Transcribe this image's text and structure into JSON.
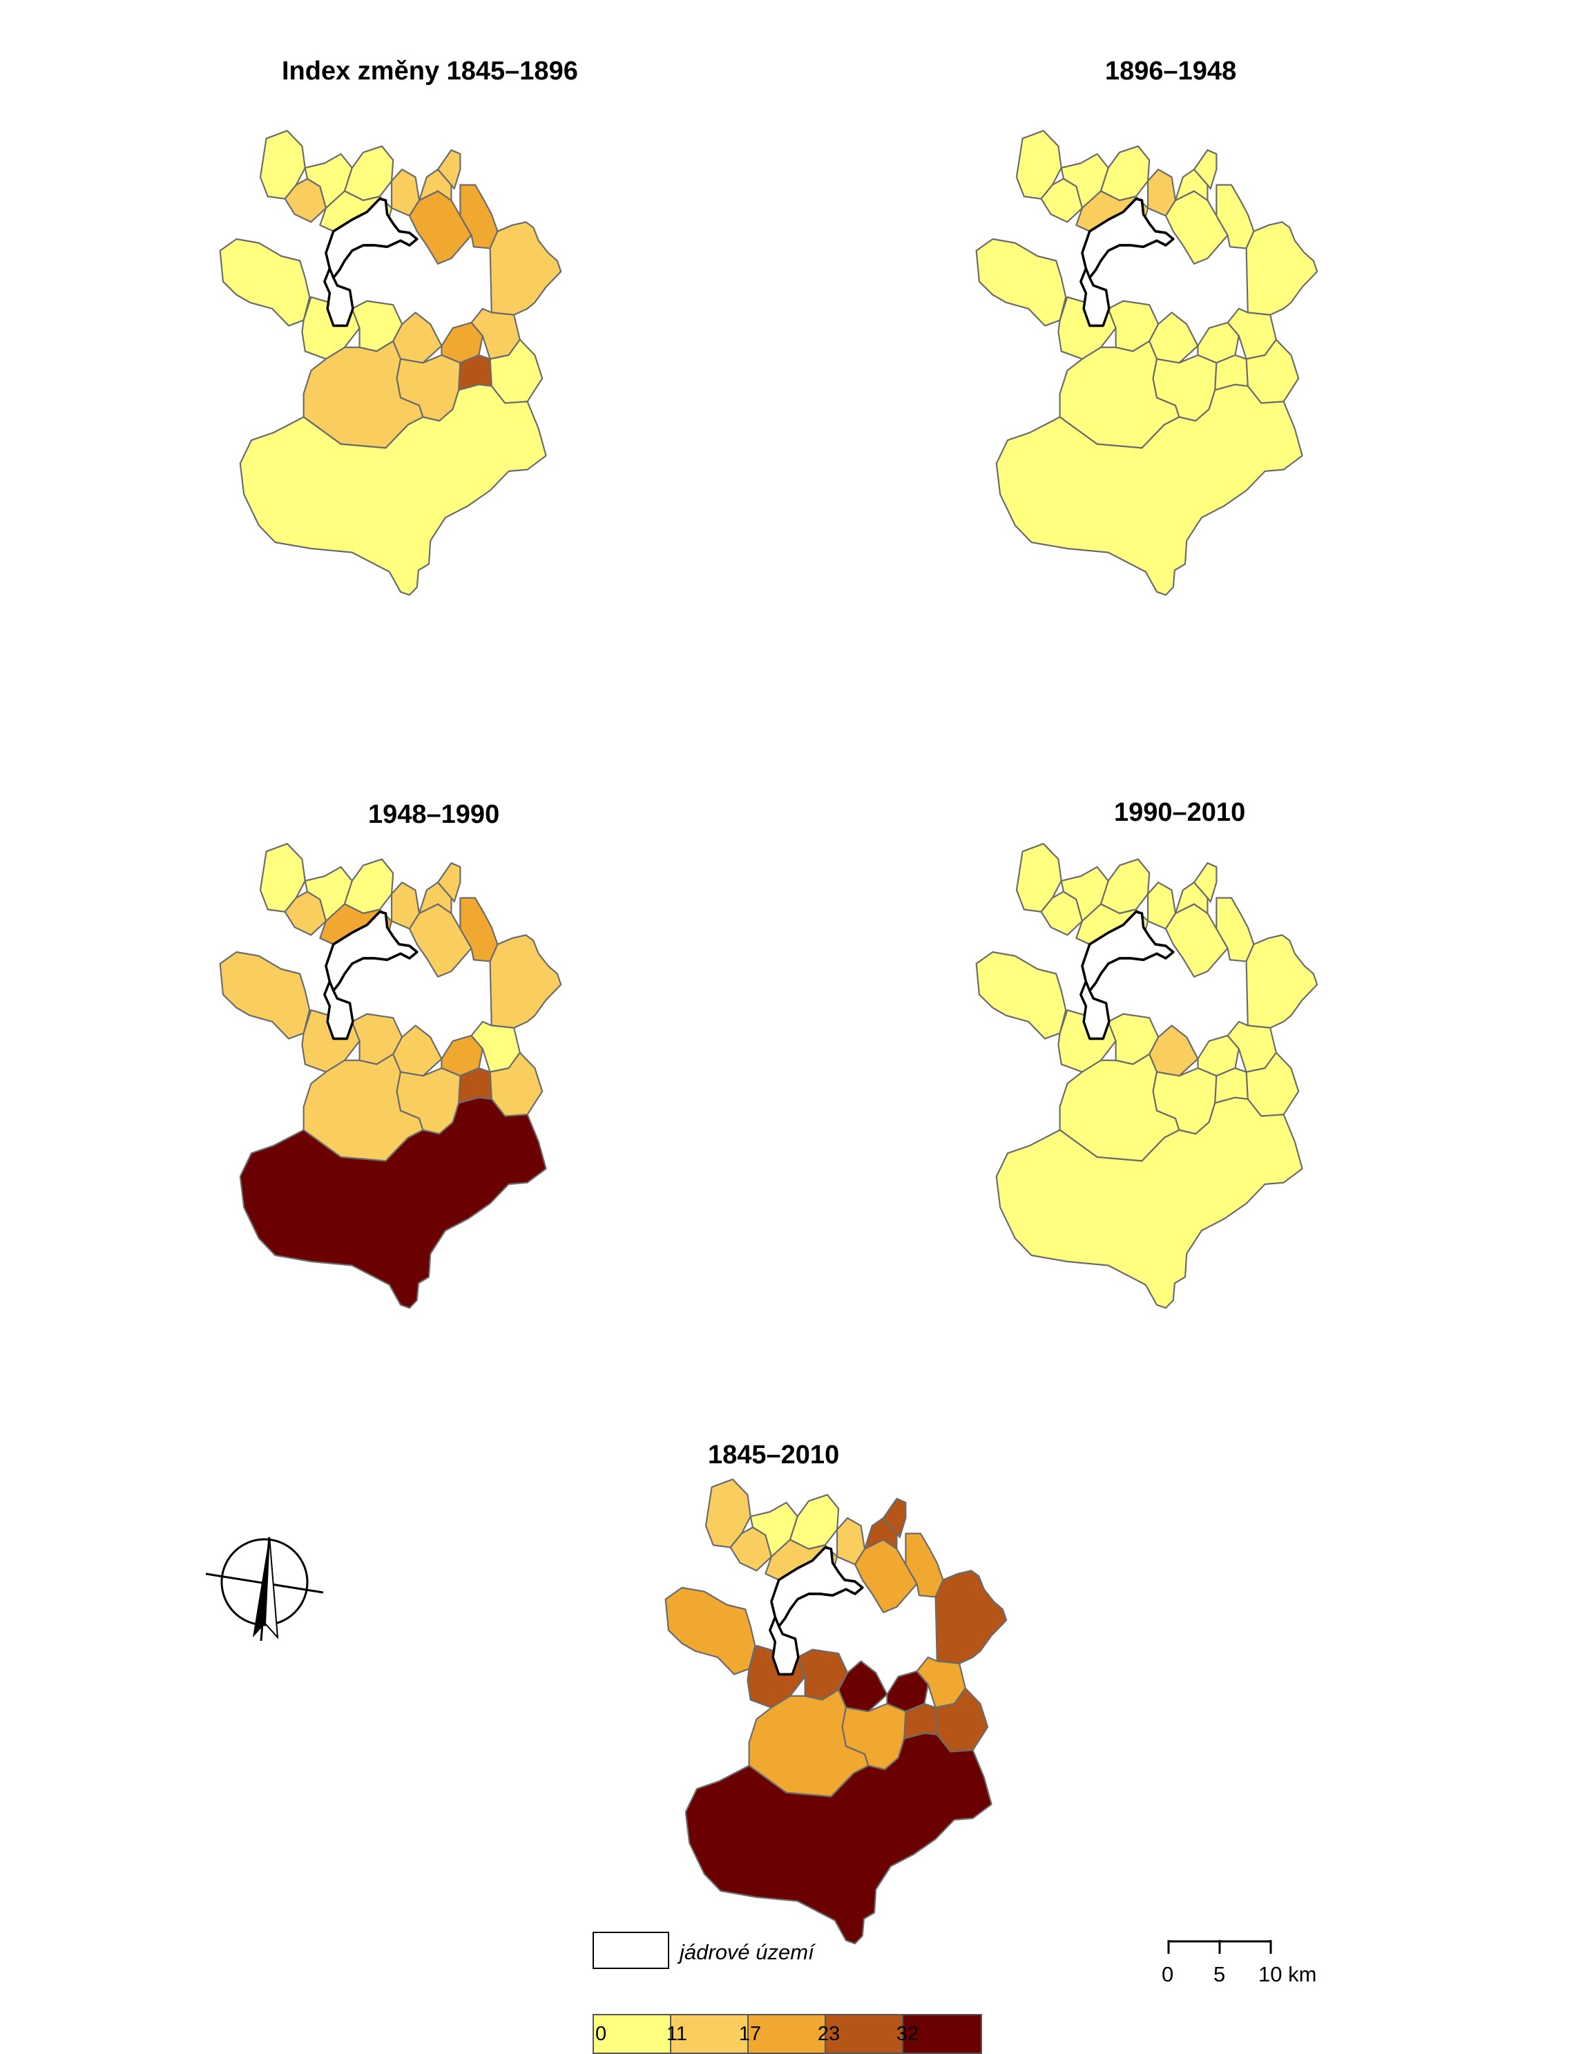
{
  "maps": [
    {
      "title": "Index změny 1845–1896",
      "fills": [
        "c1",
        "c1",
        "c2",
        "c1",
        "c1",
        "c1",
        "c2",
        "c3",
        "c2",
        "c2",
        "c3",
        "c2",
        "c1",
        "c1",
        "c2",
        "c3",
        "c2",
        "c1",
        "c2",
        "c2",
        "c1",
        "c4"
      ]
    },
    {
      "title": "1896–1948",
      "fills": [
        "c1",
        "c1",
        "c1",
        "c1",
        "c1",
        "c2",
        "c2",
        "c1",
        "c1",
        "c1",
        "c1",
        "c1",
        "c1",
        "c1",
        "c1",
        "c1",
        "c1",
        "c1",
        "c1",
        "c1",
        "c1",
        "c1"
      ]
    },
    {
      "title": "1948–1990",
      "fills": [
        "c2",
        "c1",
        "c2",
        "c1",
        "c1",
        "c3",
        "c2",
        "c2",
        "c2",
        "c2",
        "c3",
        "c2",
        "c2",
        "c2",
        "c2",
        "c3",
        "c1",
        "c2",
        "c2",
        "c2",
        "c5",
        "c4"
      ]
    },
    {
      "title": "1990–2010",
      "fills": [
        "c1",
        "c1",
        "c1",
        "c1",
        "c1",
        "c1",
        "c1",
        "c1",
        "c1",
        "c1",
        "c1",
        "c1",
        "c1",
        "c1",
        "c2",
        "c1",
        "c1",
        "c1",
        "c1",
        "c1",
        "c1",
        "c1"
      ]
    },
    {
      "title": "1845–2010",
      "fills": [
        "c3",
        "c2",
        "c2",
        "c1",
        "c1",
        "c2",
        "c2",
        "c3",
        "c4",
        "c4",
        "c3",
        "c4",
        "c4",
        "c4",
        "c5",
        "c5",
        "c3",
        "c4",
        "c3",
        "c3",
        "c5",
        "c4"
      ]
    }
  ],
  "legend": {
    "core_label": "jádrové území",
    "classes": [
      "#ffff80",
      "#f9ce5e",
      "#f0a830",
      "#b55518",
      "#6b0000"
    ],
    "ticks": [
      "0",
      "11",
      "17",
      "23",
      "32"
    ]
  },
  "scale": {
    "labels": [
      "0",
      "5",
      "10 km"
    ]
  }
}
